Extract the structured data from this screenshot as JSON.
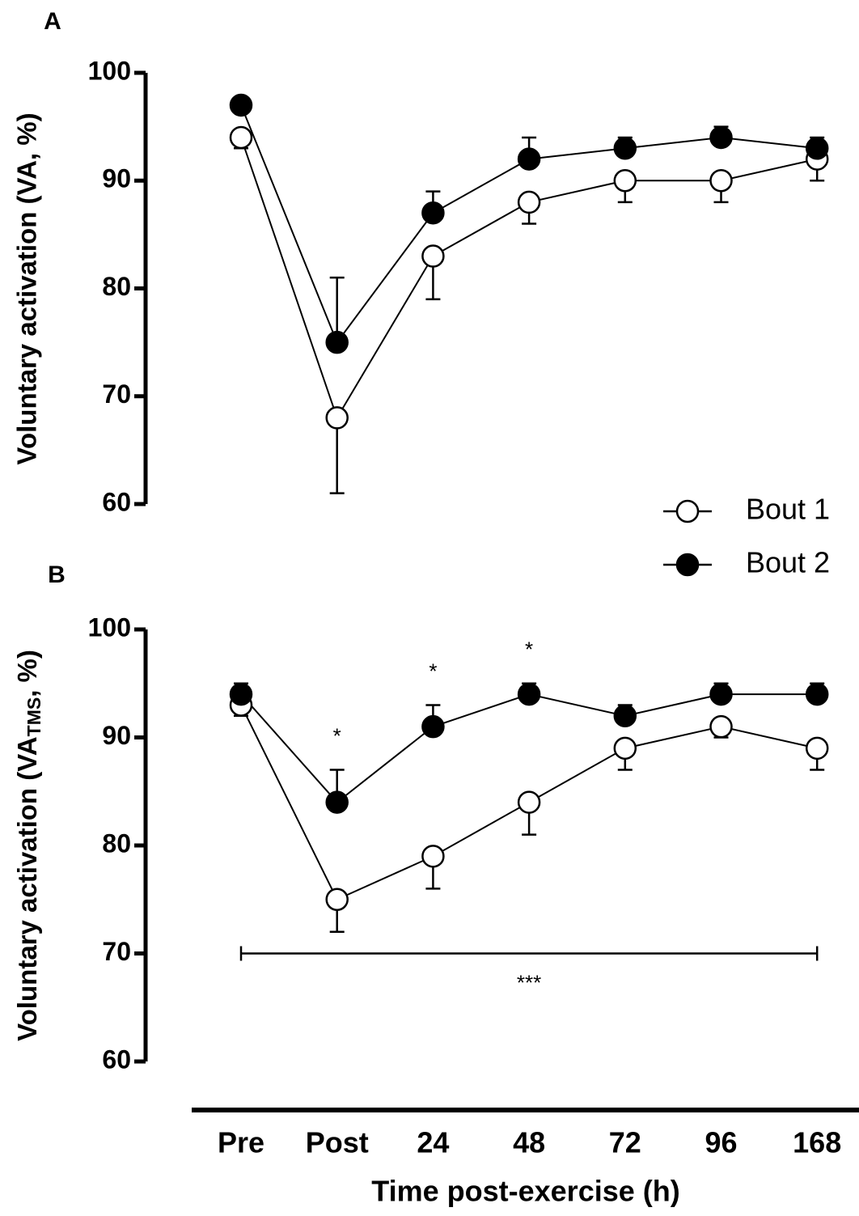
{
  "chart_data": [
    {
      "type": "line",
      "title": "A",
      "ylabel": "Voluntary activation (VA, %)",
      "ylim": [
        60,
        100
      ],
      "yticks": [
        60,
        70,
        80,
        90,
        100
      ],
      "legend": "lower right",
      "series": [
        {
          "name": "Bout 1",
          "color": "#000000",
          "marker_fill": "#ffffff",
          "error_direction": "down",
          "values": [
            94,
            68,
            83,
            88,
            90,
            90,
            92
          ],
          "errors": [
            1,
            7,
            4,
            2,
            2,
            2,
            2
          ]
        },
        {
          "name": "Bout 2",
          "color": "#000000",
          "marker_fill": "#000000",
          "error_direction": "up",
          "values": [
            97,
            75,
            87,
            92,
            93,
            94,
            93
          ],
          "errors": [
            0.5,
            6,
            2,
            2,
            1,
            1,
            1
          ]
        }
      ]
    },
    {
      "type": "line",
      "title": "B",
      "ylabel": "Voluntary activation (VA",
      "ylabel_subscript": "TMS",
      "ylabel_end": ", %)",
      "xlabel": "Time post-exercise (h)",
      "categories": [
        "Pre",
        "Post",
        "24",
        "48",
        "72",
        "96",
        "168"
      ],
      "ylim": [
        60,
        100
      ],
      "yticks": [
        60,
        70,
        80,
        90,
        100
      ],
      "series": [
        {
          "color": "#000000",
          "marker_fill": "#ffffff",
          "error_direction": "down",
          "values": [
            93,
            75,
            79,
            84,
            89,
            91,
            89
          ],
          "errors": [
            1,
            3,
            3,
            3,
            2,
            1,
            2
          ]
        },
        {
          "color": "#000000",
          "marker_fill": "#000000",
          "error_direction": "up",
          "values": [
            94,
            84,
            91,
            94,
            92,
            94,
            94
          ],
          "errors": [
            1,
            3,
            2,
            1,
            1,
            1,
            1
          ]
        }
      ],
      "annotations": [
        {
          "text": "*",
          "x": "Post",
          "y": 90
        },
        {
          "text": "*",
          "x": "24",
          "y": 96
        },
        {
          "text": "*",
          "x": "48",
          "y": 98
        }
      ],
      "bracket": {
        "text": "***",
        "x_from": "Pre",
        "x_to": "168",
        "y": 70
      }
    }
  ]
}
